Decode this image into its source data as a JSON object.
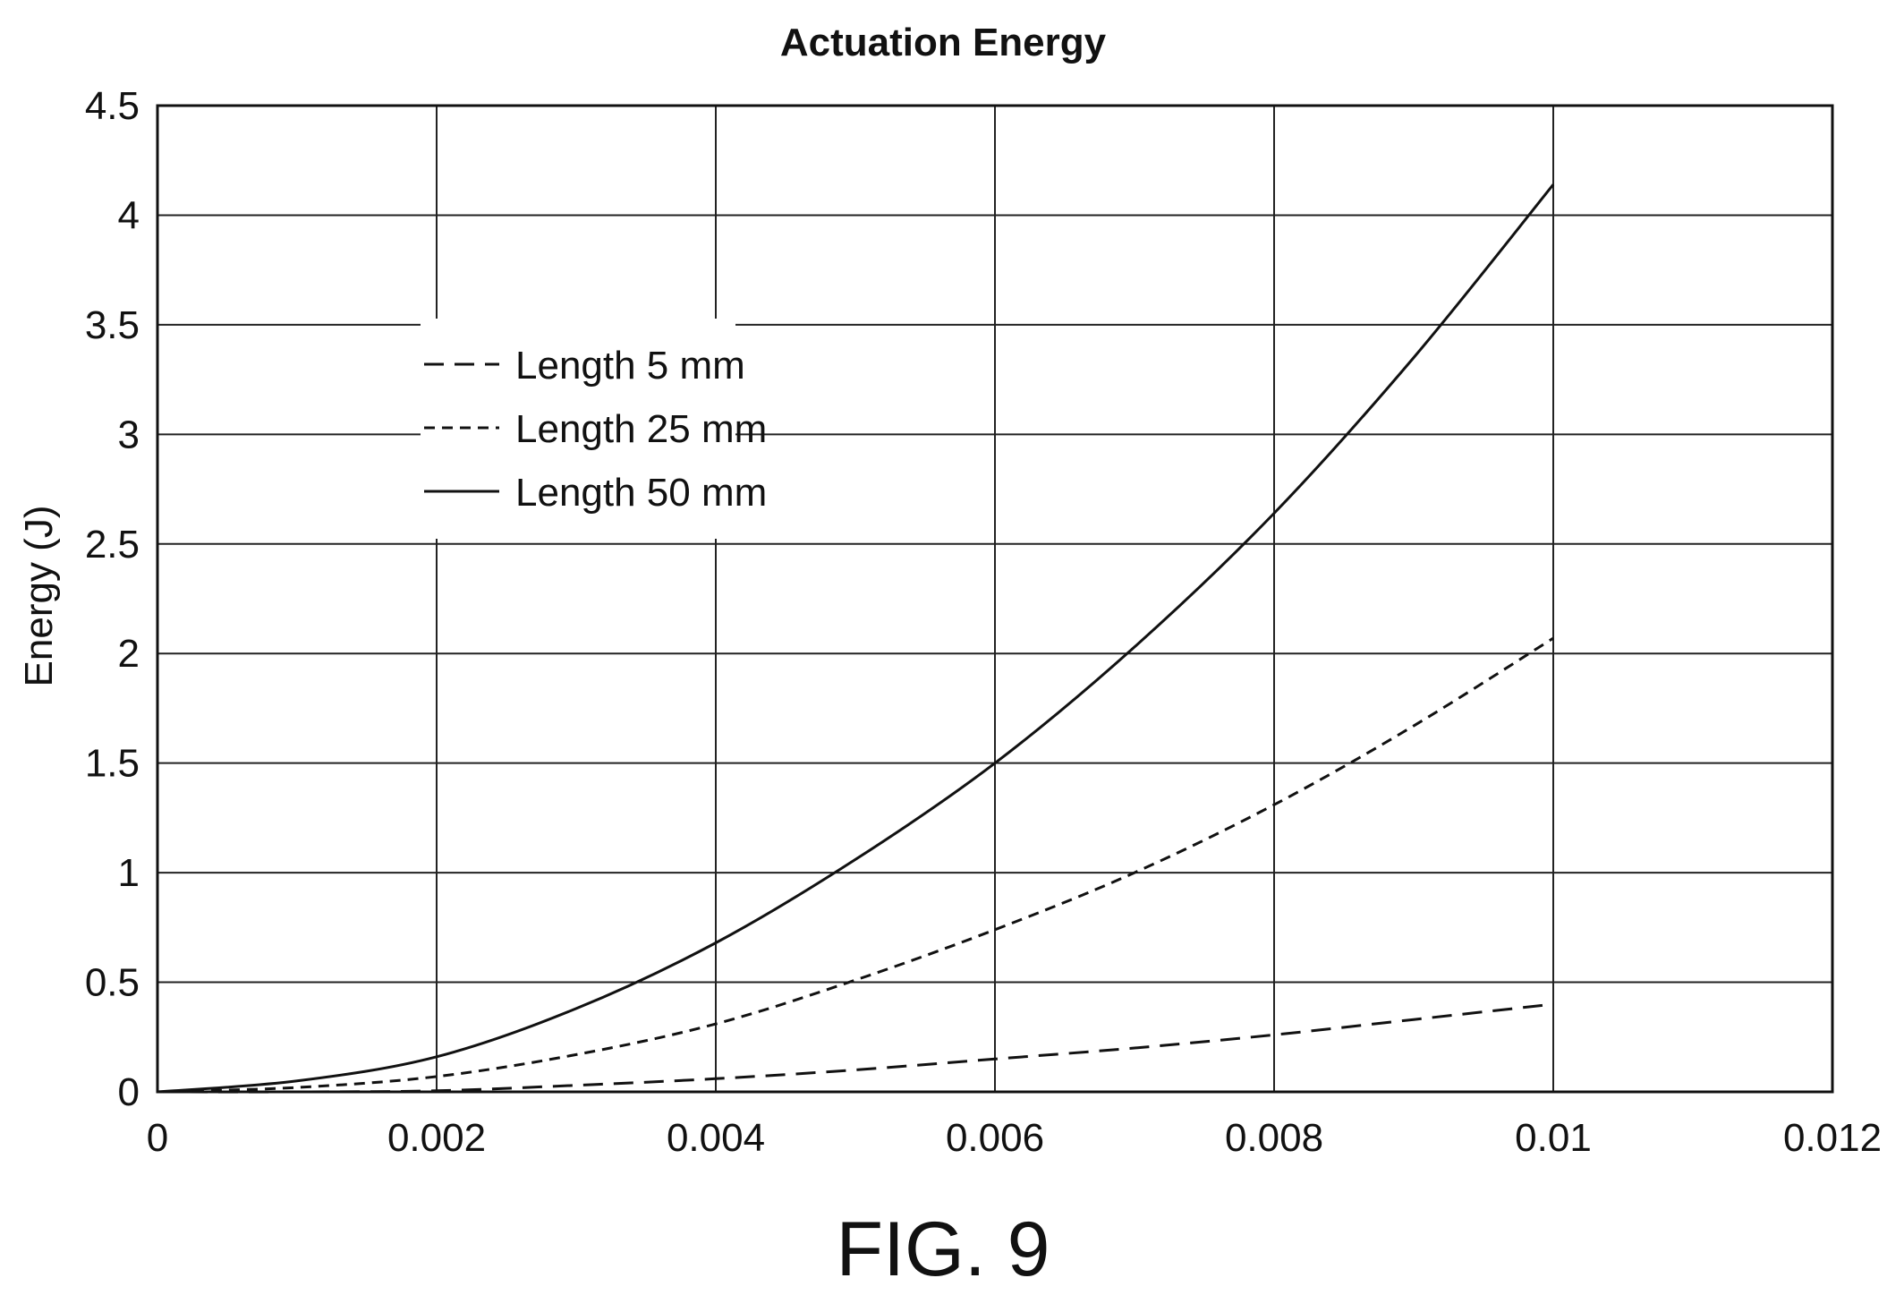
{
  "chart_data": {
    "type": "line",
    "title": "Actuation Energy",
    "xlabel": "",
    "ylabel": "Energy (J)",
    "xlim": [
      0,
      0.012
    ],
    "ylim": [
      0,
      4.5
    ],
    "grid": true,
    "legend_position": "upper-left",
    "x_ticks": [
      "0",
      "0.002",
      "0.004",
      "0.006",
      "0.008",
      "0.01",
      "0.012"
    ],
    "y_ticks": [
      "0",
      "0.5",
      "1",
      "1.5",
      "2",
      "2.5",
      "3",
      "3.5",
      "4",
      "4.5"
    ],
    "series": [
      {
        "name": "Length 5 mm",
        "dash": "long-dash",
        "x": [
          0,
          0.001,
          0.002,
          0.003,
          0.004,
          0.005,
          0.006,
          0.007,
          0.008,
          0.009,
          0.01
        ],
        "y": [
          0,
          0,
          0.005,
          0.03,
          0.06,
          0.1,
          0.15,
          0.2,
          0.26,
          0.33,
          0.4
        ]
      },
      {
        "name": "Length 25 mm",
        "dash": "short-dash",
        "x": [
          0,
          0.001,
          0.002,
          0.003,
          0.004,
          0.005,
          0.006,
          0.007,
          0.008,
          0.009,
          0.01
        ],
        "y": [
          0,
          0.02,
          0.07,
          0.17,
          0.31,
          0.51,
          0.74,
          1.0,
          1.31,
          1.67,
          2.07
        ]
      },
      {
        "name": "Length 50 mm",
        "dash": "solid",
        "x": [
          0,
          0.001,
          0.002,
          0.003,
          0.004,
          0.005,
          0.006,
          0.007,
          0.008,
          0.009,
          0.01
        ],
        "y": [
          0,
          0.05,
          0.16,
          0.38,
          0.68,
          1.06,
          1.5,
          2.03,
          2.64,
          3.35,
          4.14
        ]
      }
    ]
  },
  "figure_label": "FIG. 9"
}
